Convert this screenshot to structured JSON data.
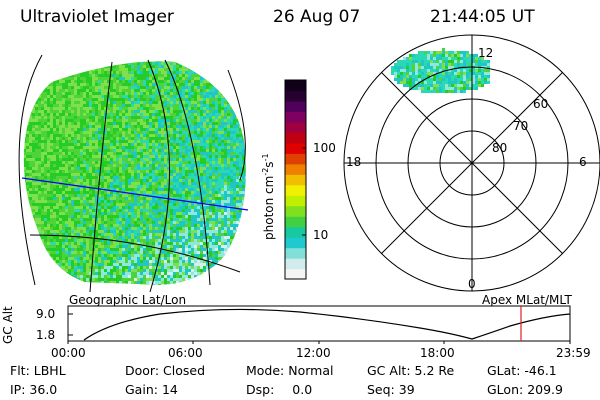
{
  "header": {
    "instrument": "Ultraviolet Imager",
    "date": "26 Aug 07",
    "time": "21:44:05 UT"
  },
  "colors": {
    "dot_palette": [
      "#26cc26",
      "#4ed43a",
      "#7ee04a",
      "#2ad8b4",
      "#1fc6c6",
      "#8fe8dc",
      "#d6eeee"
    ],
    "grid_line": "#000000",
    "terminator_line": "#0000ff",
    "current_time_marker": "#e02020"
  },
  "colorbar": {
    "label": "photon cm",
    "label_exp1": "-2",
    "label_mid": "s",
    "label_exp2": "-1",
    "ticks": [
      "100",
      "10"
    ],
    "colors_bottom_to_top": [
      "#f4f4f4",
      "#d0ecec",
      "#80e0d8",
      "#20c8d0",
      "#18c8a0",
      "#40d040",
      "#80e020",
      "#c0f000",
      "#f0f000",
      "#f0c000",
      "#f08000",
      "#e04000",
      "#e00000",
      "#c00010",
      "#a00040",
      "#800060",
      "#50005a",
      "#280030",
      "#100018"
    ]
  },
  "left_panel": {
    "caption": "Geographic Lat/Lon"
  },
  "right_panel": {
    "caption": "Apex MLat/MLT",
    "mlt_labels": {
      "top": "12",
      "left": "18",
      "right": "6",
      "bottom": "0"
    },
    "lat_labels": [
      "60",
      "70",
      "80"
    ]
  },
  "altitude_plot": {
    "ylabel": "GC Alt",
    "ticks": [
      "9.0",
      "1.8"
    ],
    "time_ticks": [
      "00:00",
      "06:00",
      "12:00",
      "18:00",
      "23:59"
    ]
  },
  "status": {
    "row1": [
      {
        "label": "Flt:",
        "value": "LBHL"
      },
      {
        "label": "Door:",
        "value": "Closed"
      },
      {
        "label": "Mode:",
        "value": "Normal"
      },
      {
        "label": "GC Alt:",
        "value": "5.2 Re"
      },
      {
        "label": "GLat:",
        "value": "-46.1"
      }
    ],
    "row2": [
      {
        "label": "IP:",
        "value": "36.0"
      },
      {
        "label": "Gain:",
        "value": "14"
      },
      {
        "label": "Dsp:",
        "value": "0.0"
      },
      {
        "label": "Seq:",
        "value": "39"
      },
      {
        "label": "GLon:",
        "value": "209.9"
      }
    ]
  }
}
